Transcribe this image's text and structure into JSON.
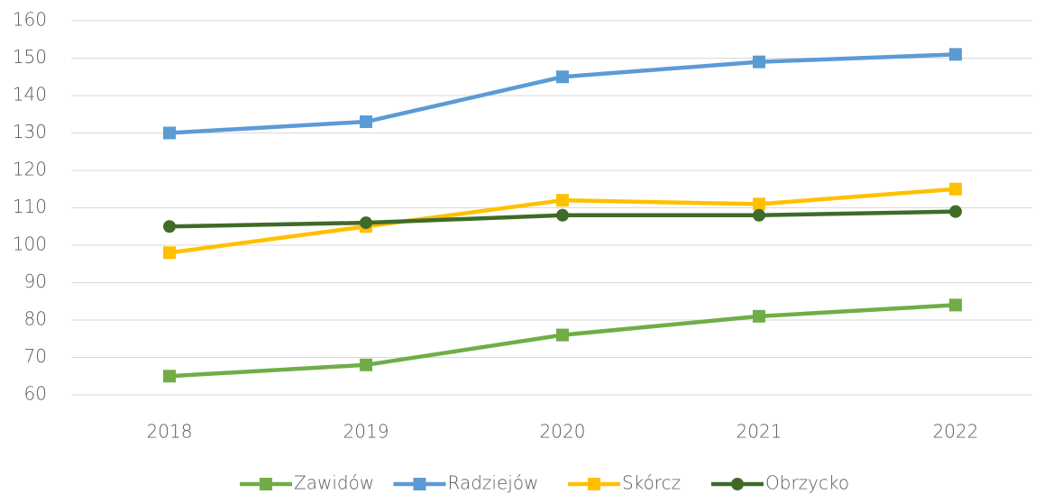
{
  "chart_data": {
    "type": "line",
    "categories": [
      "2018",
      "2019",
      "2020",
      "2021",
      "2022"
    ],
    "series": [
      {
        "name": "Zawidów",
        "color": "#70ad47",
        "marker": "square",
        "values": [
          65,
          68,
          76,
          81,
          84
        ]
      },
      {
        "name": "Radziejów",
        "color": "#5b9bd5",
        "marker": "square",
        "values": [
          130,
          133,
          145,
          149,
          151
        ]
      },
      {
        "name": "Skórcz",
        "color": "#ffc000",
        "marker": "square",
        "values": [
          98,
          105,
          112,
          111,
          115
        ]
      },
      {
        "name": "Obrzycko",
        "color": "#3e6b28",
        "marker": "circle",
        "values": [
          105,
          106,
          108,
          108,
          109
        ]
      }
    ],
    "ylim": [
      60,
      160
    ],
    "yticks": [
      60,
      70,
      80,
      90,
      100,
      110,
      120,
      130,
      140,
      150,
      160
    ],
    "grid": true,
    "legend": "bottom"
  }
}
